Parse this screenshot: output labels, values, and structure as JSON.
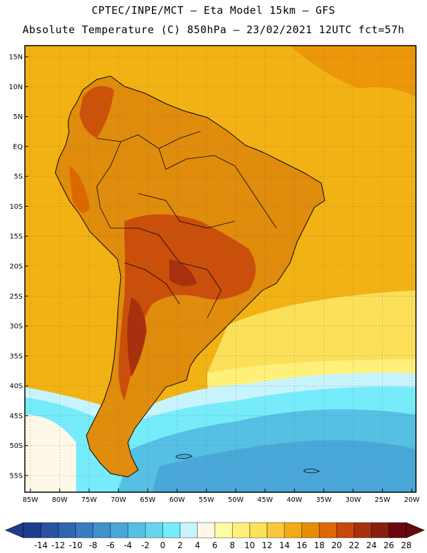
{
  "header": {
    "line1": "CPTEC/INPE/MCT –  Eta Model 15km – GFS",
    "line2": "Absolute Temperature (C) 850hPa – 23/02/2021 12UTC fct=57h"
  },
  "axes": {
    "lat_labels": [
      "15N",
      "10N",
      "5N",
      "EQ",
      "5S",
      "10S",
      "15S",
      "20S",
      "25S",
      "30S",
      "35S",
      "40S",
      "45S",
      "50S",
      "55S"
    ],
    "lon_labels": [
      "85W",
      "80W",
      "75W",
      "70W",
      "65W",
      "60W",
      "55W",
      "50W",
      "45W",
      "40W",
      "35W",
      "30W",
      "25W",
      "20W"
    ]
  },
  "colorbar": {
    "labels": [
      "-14",
      "-12",
      "-10",
      "-8",
      "-6",
      "-4",
      "-2",
      "0",
      "2",
      "4",
      "6",
      "8",
      "10",
      "12",
      "14",
      "16",
      "18",
      "20",
      "22",
      "24",
      "26",
      "28"
    ],
    "colors": [
      "#1e3c8c",
      "#2a52a0",
      "#3066b0",
      "#3a7cc2",
      "#3f92cc",
      "#4aa8d8",
      "#55c0e4",
      "#66d6f0",
      "#76ecfa",
      "#c8f4ff",
      "#fff8e6",
      "#fffaa6",
      "#fff07a",
      "#fce05a",
      "#f8c83a",
      "#f0ac12",
      "#e88c04",
      "#dc6802",
      "#c8480a",
      "#a8300e",
      "#882010",
      "#68080e"
    ]
  },
  "theme": {
    "ocean_base": "#f2b214",
    "land_base": "#e08c0c",
    "border": "#000000"
  }
}
